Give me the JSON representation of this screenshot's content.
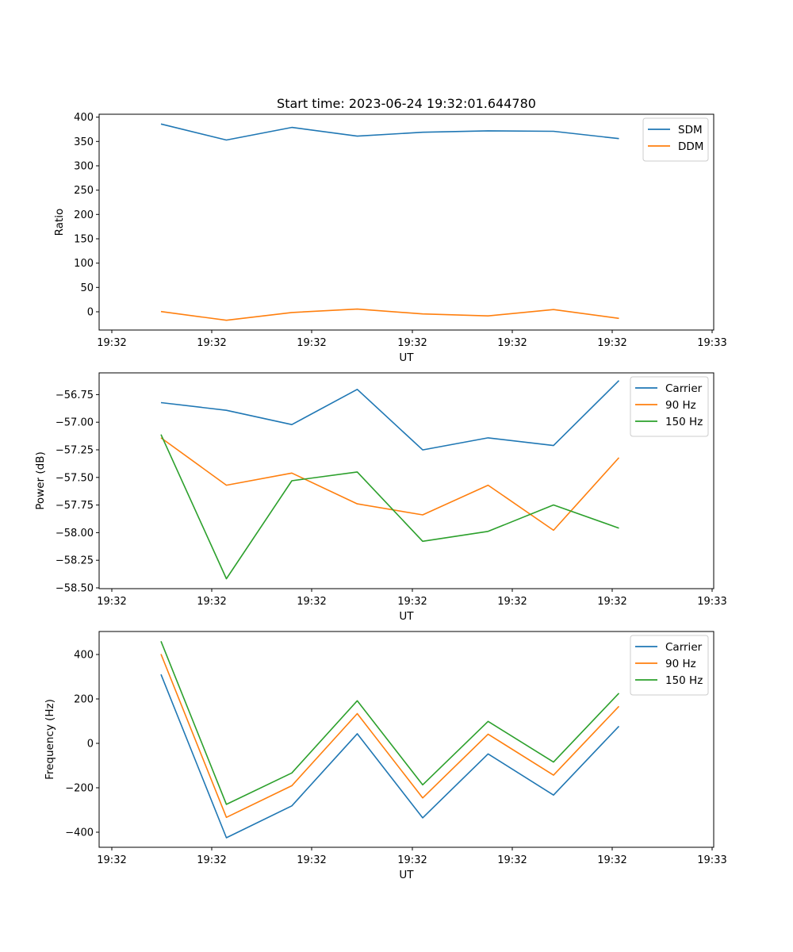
{
  "title": "Start time: 2023-06-24 19:32:01.644780",
  "colors": {
    "blue": "#1f77b4",
    "orange": "#ff7f0e",
    "green": "#2ca02c"
  },
  "chart_data": [
    {
      "type": "line",
      "title": "Start time: 2023-06-24 19:32:01.644780",
      "xlabel": "UT",
      "ylabel": "Ratio",
      "x_ticks": [
        "19:32",
        "19:32",
        "19:32",
        "19:32",
        "19:32",
        "19:32",
        "19:33"
      ],
      "y_ticks": [
        0,
        50,
        100,
        150,
        200,
        250,
        300,
        350,
        400
      ],
      "ylim": [
        -37,
        406
      ],
      "legend_position": "top-right",
      "grid": false,
      "series": [
        {
          "name": "SDM",
          "color": "#1f77b4",
          "values": [
            386,
            353,
            379,
            361,
            369,
            372,
            371,
            356
          ]
        },
        {
          "name": "DDM",
          "color": "#ff7f0e",
          "values": [
            1,
            -17,
            -1,
            6,
            -4,
            -8,
            5,
            -13
          ]
        }
      ]
    },
    {
      "type": "line",
      "title": "",
      "xlabel": "UT",
      "ylabel": "Power (dB)",
      "x_ticks": [
        "19:32",
        "19:32",
        "19:32",
        "19:32",
        "19:32",
        "19:32",
        "19:33"
      ],
      "y_ticks": [
        "−58.50",
        "−58.25",
        "−58.00",
        "−57.75",
        "−57.50",
        "−57.25",
        "−57.00",
        "−56.75"
      ],
      "ylim": [
        -58.51,
        -56.55
      ],
      "legend_position": "top-right",
      "grid": false,
      "series": [
        {
          "name": "Carrier",
          "color": "#1f77b4",
          "values": [
            -56.82,
            -56.89,
            -57.02,
            -56.7,
            -57.25,
            -57.14,
            -57.21,
            -56.62
          ]
        },
        {
          "name": "90 Hz",
          "color": "#ff7f0e",
          "values": [
            -57.14,
            -57.57,
            -57.46,
            -57.74,
            -57.84,
            -57.57,
            -57.98,
            -57.32
          ]
        },
        {
          "name": "150 Hz",
          "color": "#2ca02c",
          "values": [
            -57.11,
            -58.42,
            -57.53,
            -57.45,
            -58.08,
            -57.99,
            -57.75,
            -57.96
          ]
        }
      ]
    },
    {
      "type": "line",
      "title": "",
      "xlabel": "UT",
      "ylabel": "Frequency (Hz)",
      "x_ticks": [
        "19:32",
        "19:32",
        "19:32",
        "19:32",
        "19:32",
        "19:32",
        "19:33"
      ],
      "y_ticks": [
        "−400",
        "−200",
        "0",
        "200",
        "400"
      ],
      "ylim": [
        -469,
        506
      ],
      "legend_position": "top-right",
      "grid": false,
      "series": [
        {
          "name": "Carrier",
          "color": "#1f77b4",
          "values": [
            312,
            -426,
            -282,
            44,
            -336,
            -47,
            -233,
            78
          ]
        },
        {
          "name": "90 Hz",
          "color": "#ff7f0e",
          "values": [
            404,
            -334,
            -191,
            135,
            -246,
            42,
            -143,
            168
          ]
        },
        {
          "name": "150 Hz",
          "color": "#2ca02c",
          "values": [
            462,
            -275,
            -133,
            193,
            -187,
            100,
            -84,
            227
          ]
        }
      ]
    }
  ]
}
